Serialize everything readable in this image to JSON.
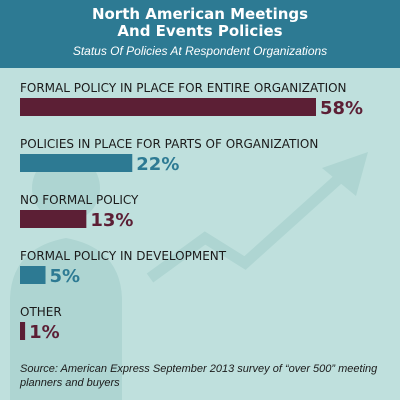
{
  "chart_data": {
    "type": "bar",
    "orientation": "horizontal",
    "title": "North American Meetings\nAnd Events Policies",
    "subtitle": "Status Of Policies At Respondent Organizations",
    "categories": [
      "FORMAL POLICY IN PLACE FOR ENTIRE ORGANIZATION",
      "POLICIES IN PLACE FOR PARTS OF ORGANIZATION",
      "NO FORMAL POLICY",
      "FORMAL POLICY IN DEVELOPMENT",
      "OTHER"
    ],
    "values": [
      58,
      22,
      13,
      5,
      1
    ],
    "value_labels": [
      "58%",
      "22%",
      "13%",
      "5%",
      "1%"
    ],
    "bar_colors": [
      "#5c1f35",
      "#2d7a93",
      "#5c1f35",
      "#2d7a93",
      "#5c1f35"
    ],
    "xlim": [
      0,
      58
    ],
    "grid": false,
    "legend": "none"
  },
  "source": "Source: American Express September 2013 survey of “over 500” meeting planners and buyers",
  "colors": {
    "background": "#bfe0dd",
    "header": "#2d7a93",
    "maroon": "#5c1f35",
    "teal": "#2d7a93",
    "art": "#aed5d2"
  }
}
